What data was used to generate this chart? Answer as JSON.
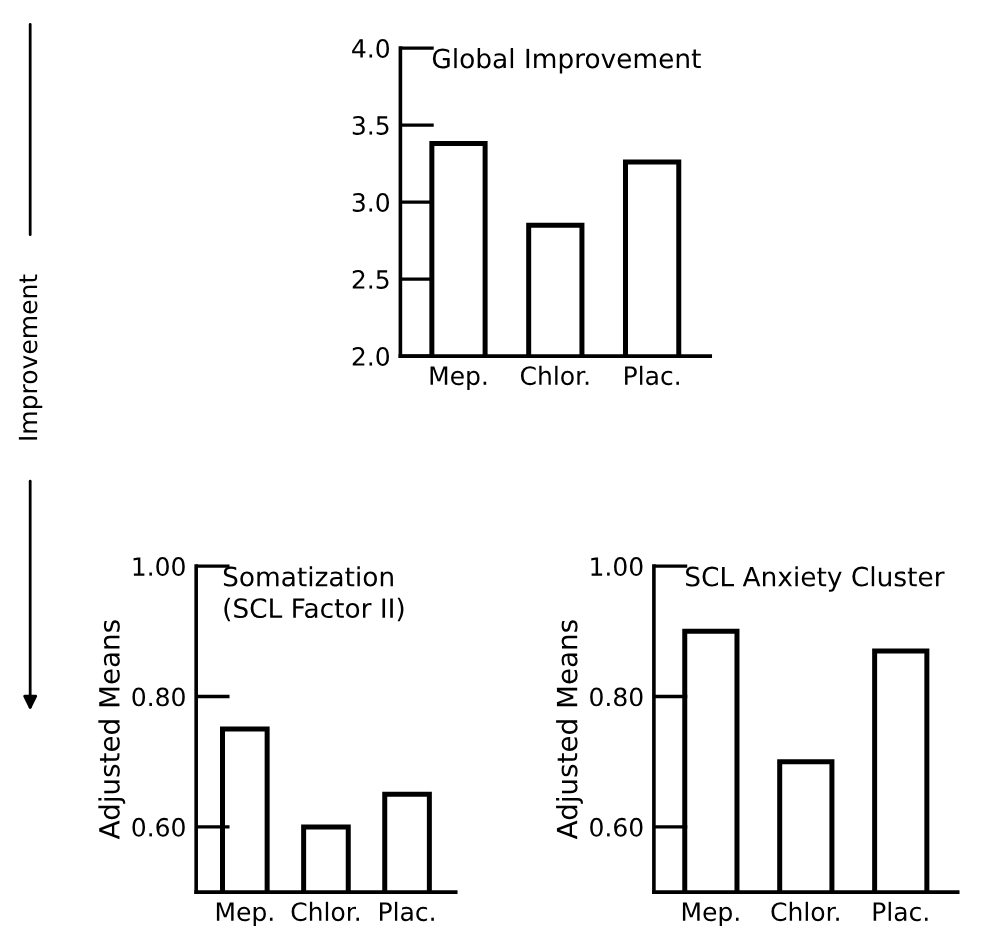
{
  "chart_data": [
    {
      "type": "bar",
      "title": "Global Improvement",
      "categories": [
        "Mep.",
        "Chlor.",
        "Plac."
      ],
      "values": [
        3.38,
        2.85,
        3.26
      ],
      "color": "#ffffff",
      "ylim": [
        2.0,
        4.0
      ],
      "yticks": [
        {
          "value": 2.0,
          "label": "2.0"
        },
        {
          "value": 2.5,
          "label": "2.5"
        },
        {
          "value": 3.0,
          "label": "3.0"
        },
        {
          "value": 3.5,
          "label": "3.5"
        },
        {
          "value": 4.0,
          "label": "4.0"
        }
      ],
      "grid": false,
      "annotations": [
        "Improvement"
      ]
    },
    {
      "type": "bar",
      "title": "Somatization\n(SCL Factor II)",
      "ylabel": "Adjusted Means",
      "categories": [
        "Mep.",
        "Chlor.",
        "Plac."
      ],
      "values": [
        0.75,
        0.6,
        0.65
      ],
      "color": "#ffffff",
      "ylim": [
        0.5,
        1.0
      ],
      "yticks": [
        {
          "value": 0.6,
          "label": "0.60"
        },
        {
          "value": 0.8,
          "label": "0.80"
        },
        {
          "value": 1.0,
          "label": "1.00"
        }
      ],
      "grid": false
    },
    {
      "type": "bar",
      "title": "SCL Anxiety Cluster",
      "ylabel": "Adjusted Means",
      "categories": [
        "Mep.",
        "Chlor.",
        "Plac."
      ],
      "values": [
        0.9,
        0.7,
        0.87
      ],
      "color": "#ffffff",
      "ylim": [
        0.5,
        1.0
      ],
      "yticks": [
        {
          "value": 0.6,
          "label": "0.60"
        },
        {
          "value": 0.8,
          "label": "0.80"
        },
        {
          "value": 1.0,
          "label": "1.00"
        }
      ],
      "grid": false
    }
  ]
}
